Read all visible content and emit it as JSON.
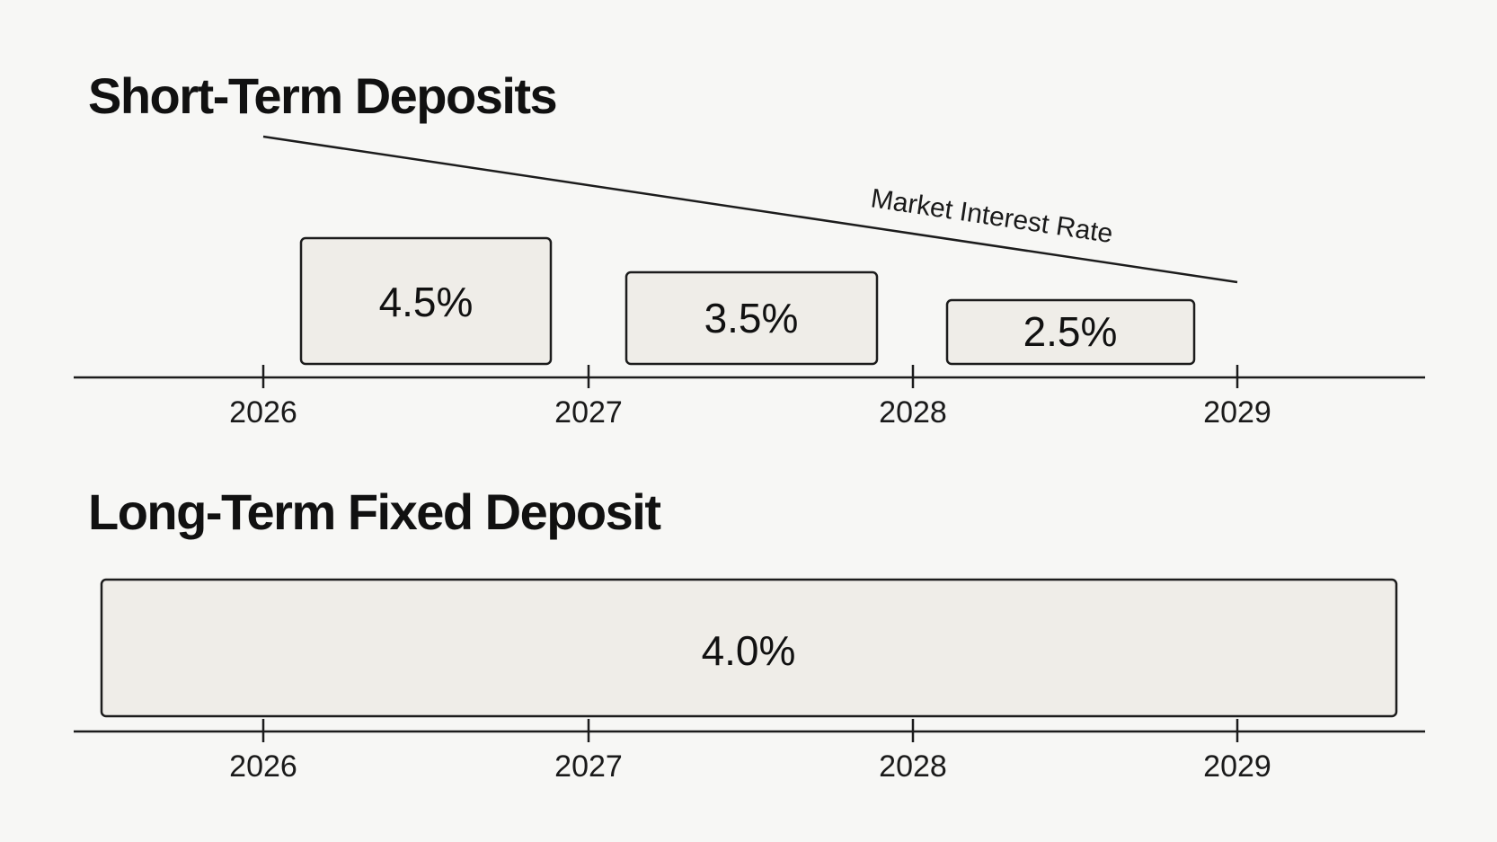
{
  "short_term": {
    "title": "Short-Term Deposits",
    "trend_label": "Market Interest Rate",
    "deposits": [
      {
        "label": "4.5%",
        "rate": 4.5,
        "start_year": 2026,
        "end_year": 2027
      },
      {
        "label": "3.5%",
        "rate": 3.5,
        "start_year": 2027,
        "end_year": 2028
      },
      {
        "label": "2.5%",
        "rate": 2.5,
        "start_year": 2028,
        "end_year": 2029
      }
    ],
    "axis_years": [
      "2026",
      "2027",
      "2028",
      "2029"
    ]
  },
  "long_term": {
    "title": "Long-Term Fixed Deposit",
    "deposit": {
      "label": "4.0%",
      "rate": 4.0
    },
    "axis_years": [
      "2026",
      "2027",
      "2028",
      "2029"
    ]
  },
  "colors": {
    "background": "#f7f7f5",
    "box_fill": "#efede8",
    "stroke": "#1c1c1c",
    "text": "#111111"
  }
}
